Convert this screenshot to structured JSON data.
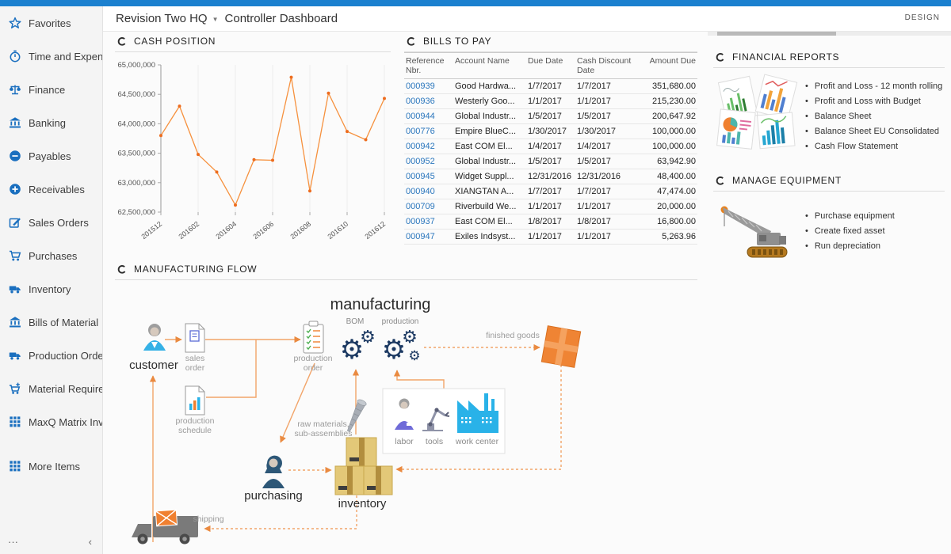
{
  "header": {
    "company": "Revision Two HQ",
    "dashboard_title": "Controller Dashboard",
    "design_label": "DESIGN"
  },
  "sidebar": {
    "items": [
      {
        "label": "Favorites",
        "icon": "star"
      },
      {
        "label": "Time and Expenses",
        "icon": "clock"
      },
      {
        "label": "Finance",
        "icon": "scales"
      },
      {
        "label": "Banking",
        "icon": "bank"
      },
      {
        "label": "Payables",
        "icon": "minus"
      },
      {
        "label": "Receivables",
        "icon": "plus"
      },
      {
        "label": "Sales Orders",
        "icon": "edit"
      },
      {
        "label": "Purchases",
        "icon": "cart"
      },
      {
        "label": "Inventory",
        "icon": "truck"
      },
      {
        "label": "Bills of Material",
        "icon": "bank"
      },
      {
        "label": "Production Orders",
        "icon": "truck"
      },
      {
        "label": "Material Requirem...",
        "icon": "cartplus"
      },
      {
        "label": "MaxQ Matrix Invent...",
        "icon": "grid"
      },
      {
        "label": "More Items",
        "icon": "grid"
      }
    ],
    "overflow_dots": "···",
    "collapse_arrow": "‹"
  },
  "panels": {
    "cash_position": {
      "title": "CASH POSITION"
    },
    "bills_to_pay": {
      "title": "BILLS TO PAY",
      "columns": [
        "Reference Nbr.",
        "Account Name",
        "Due Date",
        "Cash Discount Date",
        "Amount Due"
      ],
      "rows": [
        [
          "000939",
          "Good Hardwa...",
          "1/7/2017",
          "1/7/2017",
          "351,680.00"
        ],
        [
          "000936",
          "Westerly Goo...",
          "1/1/2017",
          "1/1/2017",
          "215,230.00"
        ],
        [
          "000944",
          "Global Industr...",
          "1/5/2017",
          "1/5/2017",
          "200,647.92"
        ],
        [
          "000776",
          "Empire BlueC...",
          "1/30/2017",
          "1/30/2017",
          "100,000.00"
        ],
        [
          "000942",
          "East COM El...",
          "1/4/2017",
          "1/4/2017",
          "100,000.00"
        ],
        [
          "000952",
          "Global Industr...",
          "1/5/2017",
          "1/5/2017",
          "63,942.90"
        ],
        [
          "000945",
          "Widget Suppl...",
          "12/31/2016",
          "12/31/2016",
          "48,400.00"
        ],
        [
          "000940",
          "XIANGTAN A...",
          "1/7/2017",
          "1/7/2017",
          "47,474.00"
        ],
        [
          "000709",
          "Riverbuild We...",
          "1/1/2017",
          "1/1/2017",
          "20,000.00"
        ],
        [
          "000937",
          "East COM El...",
          "1/8/2017",
          "1/8/2017",
          "16,800.00"
        ],
        [
          "000947",
          "Exiles Indsyst...",
          "1/1/2017",
          "1/1/2017",
          "5,263.96"
        ]
      ]
    },
    "financial_reports": {
      "title": "FINANCIAL REPORTS",
      "links": [
        "Profit and Loss - 12 month rolling",
        "Profit and Loss with Budget",
        "Balance Sheet",
        "Balance Sheet EU Consolidated",
        "Cash Flow Statement"
      ]
    },
    "manage_equipment": {
      "title": "MANAGE EQUIPMENT",
      "links": [
        "Purchase equipment",
        "Create fixed asset",
        "Run depreciation"
      ]
    },
    "manufacturing_flow": {
      "title": "MANUFACTURING FLOW",
      "labels": {
        "title": "manufacturing",
        "bom": "BOM",
        "production": "production",
        "customer": "customer",
        "sales_order": "sales order",
        "production_order": "production order",
        "production_schedule": "production schedule",
        "raw_materials": "raw materials, sub-assemblies",
        "finished_goods": "finished goods",
        "labor": "labor",
        "tools": "tools",
        "work_center": "work center",
        "inventory": "inventory",
        "purchasing": "purchasing",
        "shipping": "shipping"
      }
    }
  },
  "chart_data": {
    "type": "line",
    "title": "CASH POSITION",
    "x": [
      "201512",
      "201601",
      "201602",
      "201603",
      "201604",
      "201605",
      "201606",
      "201607",
      "201608",
      "201609",
      "201610",
      "201611",
      "201612"
    ],
    "values": [
      63800000,
      64300000,
      63480000,
      63180000,
      62620000,
      63390000,
      63380000,
      64790000,
      62860000,
      64520000,
      63870000,
      63730000,
      64430000
    ],
    "x_tick_labels": [
      "201512",
      "201602",
      "201604",
      "201606",
      "201608",
      "201610",
      "201612"
    ],
    "y_ticks": [
      "65,000,000",
      "64,500,000",
      "64,000,000",
      "63,500,000",
      "63,000,000",
      "62,500,000"
    ],
    "ylim": [
      62500000,
      65000000
    ],
    "grid": "vertical-only",
    "legend": "none",
    "line_color": "#f6913e",
    "marker_color": "#ed6c1e"
  },
  "colors": {
    "topbar": "#1b80cf",
    "sidebar_icon": "#1a6fbf",
    "table_link": "#2a76bd",
    "diagram_arrow": "#f2a469",
    "gear_navy": "#1d3a63",
    "box_tan": "#e3c878",
    "finished_goods_orange": "#ef8434"
  }
}
